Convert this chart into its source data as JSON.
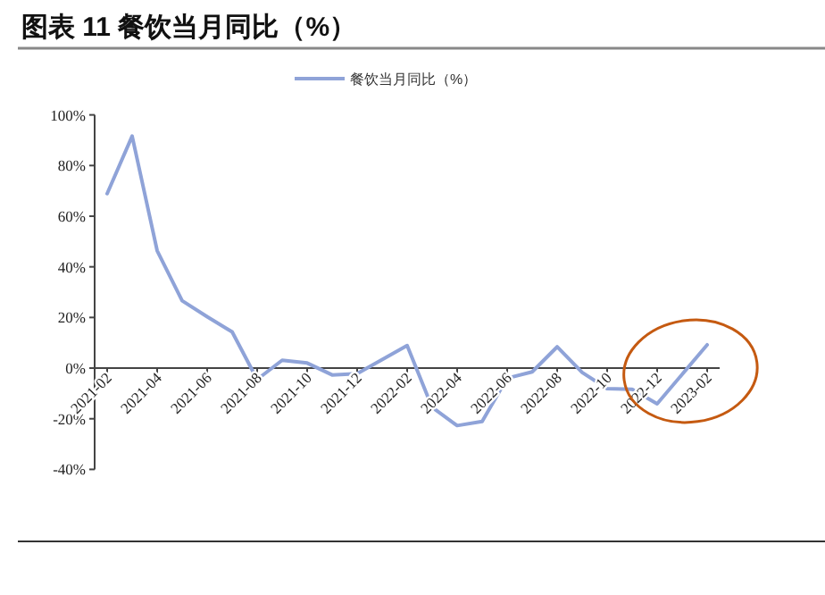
{
  "chart_data": {
    "type": "line",
    "title": "图表 11 餐饮当月同比（%）",
    "x": [
      "2021-02",
      "2021-03",
      "2021-04",
      "2021-05",
      "2021-06",
      "2021-07",
      "2021-08",
      "2021-09",
      "2021-10",
      "2021-11",
      "2021-12",
      "2022-02",
      "2022-03",
      "2022-04",
      "2022-05",
      "2022-06",
      "2022-07",
      "2022-08",
      "2022-09",
      "2022-10",
      "2022-11",
      "2022-12",
      "2023-02"
    ],
    "series": [
      {
        "name": "餐饮当月同比（%）",
        "color": "#8fa3d8",
        "values": [
          68.9,
          91.6,
          46.4,
          26.6,
          20.3,
          14.3,
          -4.5,
          3.1,
          2.0,
          -2.7,
          -2.2,
          8.9,
          -15.5,
          -22.7,
          -21.1,
          -4.0,
          -1.5,
          8.4,
          -1.7,
          -8.1,
          -8.4,
          -14.1,
          9.2
        ]
      }
    ],
    "xlim": [
      "2021-01-16",
      "2023-02-16"
    ],
    "xticks": [
      {
        "value": "2021-02",
        "label": "2021-02"
      },
      {
        "value": "2021-04",
        "label": "2021-04"
      },
      {
        "value": "2021-06",
        "label": "2021-06"
      },
      {
        "value": "2021-08",
        "label": "2021-08"
      },
      {
        "value": "2021-10",
        "label": "2021-10"
      },
      {
        "value": "2021-12",
        "label": "2021-12"
      },
      {
        "value": "2022-02",
        "label": "2022-02"
      },
      {
        "value": "2022-04",
        "label": "2022-04"
      },
      {
        "value": "2022-06",
        "label": "2022-06"
      },
      {
        "value": "2022-08",
        "label": "2022-08"
      },
      {
        "value": "2022-10",
        "label": "2022-10"
      },
      {
        "value": "2022-12",
        "label": "2022-12"
      },
      {
        "value": "2023-02",
        "label": "2023-02"
      }
    ],
    "ylim": [
      -40,
      100
    ],
    "yticks": [
      {
        "value": -40,
        "label": "-40%"
      },
      {
        "value": -20,
        "label": "-20%"
      },
      {
        "value": 0,
        "label": "0%"
      },
      {
        "value": 20,
        "label": "20%"
      },
      {
        "value": 40,
        "label": "40%"
      },
      {
        "value": 60,
        "label": "60%"
      },
      {
        "value": 80,
        "label": "80%"
      },
      {
        "value": 100,
        "label": "100%"
      }
    ],
    "grid": false,
    "legend": "top",
    "marker": "none",
    "line_style": "solid"
  }
}
